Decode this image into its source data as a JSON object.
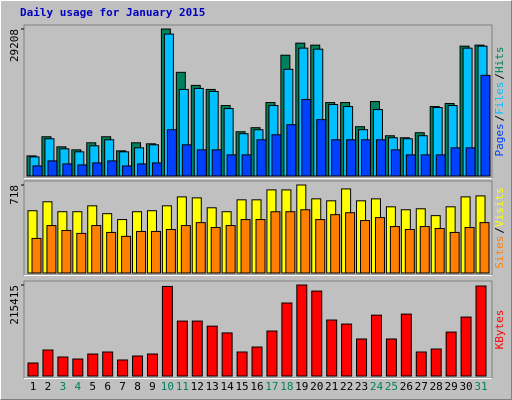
{
  "title": "Daily usage for January 2015",
  "legend_separator": "/",
  "chart_data": [
    {
      "type": "bar",
      "ylim": [
        0,
        29208
      ],
      "yticks": [
        29208
      ],
      "series": [
        {
          "name": "Hits",
          "color": "#00805c",
          "values": [
            4000,
            7800,
            5800,
            5200,
            6600,
            7800,
            5000,
            6600,
            6400,
            29208,
            20600,
            18000,
            17200,
            14000,
            8800,
            9600,
            14600,
            24000,
            26400,
            26000,
            14600,
            14600,
            9800,
            14800,
            8000,
            7600,
            8600,
            13800,
            14400,
            25800,
            26000
          ]
        },
        {
          "name": "Files",
          "color": "#00c0ff",
          "values": [
            3800,
            7400,
            5400,
            4800,
            6000,
            7200,
            4800,
            5600,
            6200,
            28200,
            17200,
            17400,
            16800,
            13400,
            8400,
            9200,
            14000,
            21200,
            25400,
            25200,
            14200,
            13800,
            9200,
            13200,
            7600,
            7400,
            8000,
            13600,
            14000,
            25400,
            25800
          ]
        },
        {
          "name": "Pages",
          "color": "#0040ff",
          "values": [
            2000,
            3000,
            2400,
            2200,
            2600,
            3000,
            2000,
            2400,
            2600,
            9200,
            6200,
            5200,
            5200,
            4200,
            4200,
            7200,
            8200,
            10200,
            15200,
            11200,
            7200,
            7200,
            7200,
            7200,
            5200,
            4200,
            4200,
            4200,
            5600,
            5600,
            20000
          ]
        }
      ]
    },
    {
      "type": "bar",
      "ylim": [
        0,
        718
      ],
      "yticks": [
        718
      ],
      "series": [
        {
          "name": "Visits",
          "color": "#ffff00",
          "values": [
            508,
            581,
            500,
            500,
            548,
            484,
            436,
            500,
            508,
            548,
            621,
            613,
            532,
            500,
            597,
            597,
            678,
            678,
            718,
            605,
            589,
            686,
            589,
            605,
            540,
            516,
            524,
            468,
            540,
            621,
            629
          ]
        },
        {
          "name": "Sites",
          "color": "#ff8000",
          "values": [
            282,
            387,
            347,
            323,
            387,
            331,
            299,
            339,
            339,
            355,
            387,
            411,
            371,
            387,
            436,
            436,
            500,
            500,
            516,
            436,
            476,
            492,
            428,
            452,
            379,
            355,
            379,
            363,
            331,
            371,
            411
          ]
        }
      ]
    },
    {
      "type": "bar",
      "ylim": [
        0,
        215415
      ],
      "yticks": [
        215415
      ],
      "categories": [
        "1",
        "2",
        "3",
        "4",
        "5",
        "6",
        "7",
        "8",
        "9",
        "10",
        "11",
        "12",
        "13",
        "14",
        "15",
        "16",
        "17",
        "18",
        "19",
        "20",
        "21",
        "22",
        "23",
        "24",
        "25",
        "26",
        "27",
        "28",
        "29",
        "30",
        "31"
      ],
      "category_colors": [
        "#000000",
        "#000000",
        "#00805c",
        "#00805c",
        "#000000",
        "#000000",
        "#000000",
        "#000000",
        "#000000",
        "#00805c",
        "#00805c",
        "#000000",
        "#000000",
        "#000000",
        "#000000",
        "#000000",
        "#00805c",
        "#00805c",
        "#000000",
        "#000000",
        "#000000",
        "#000000",
        "#000000",
        "#00805c",
        "#00805c",
        "#000000",
        "#000000",
        "#000000",
        "#000000",
        "#000000",
        "#00805c"
      ],
      "series": [
        {
          "name": "KBytes",
          "color": "#ff0000",
          "values": [
            30800,
            61500,
            45000,
            40200,
            52000,
            56800,
            37900,
            47300,
            52000,
            212000,
            130000,
            130000,
            118000,
            102000,
            56800,
            68600,
            106500,
            172800,
            215415,
            201000,
            132500,
            123000,
            87600,
            144000,
            87600,
            146500,
            56800,
            63900,
            104000,
            139500,
            213000
          ]
        }
      ]
    }
  ]
}
